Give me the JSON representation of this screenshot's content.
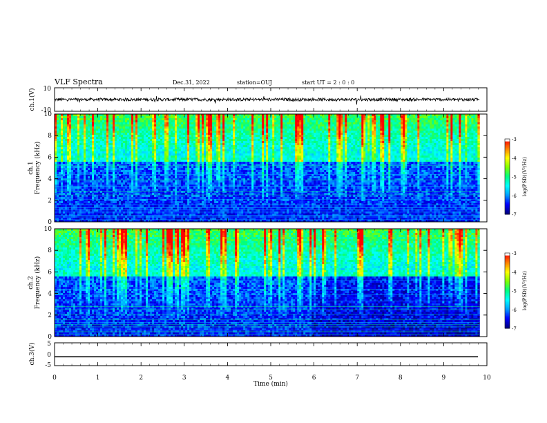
{
  "header": {
    "title": "VLF Spectra",
    "date": "Dec.31, 2022",
    "station": "station=OUJ",
    "start": "start UT =  2 : 0  : 0"
  },
  "colors": {
    "axis": "#000000",
    "colormap": [
      "#000080",
      "#0000ff",
      "#00a0ff",
      "#00ffff",
      "#00ff80",
      "#80ff00",
      "#ffff00",
      "#ff8000",
      "#ff0000",
      "#ffffff"
    ]
  },
  "chart_data": [
    {
      "type": "line",
      "ylabel": "ch.1(V)",
      "ylim": [
        -10,
        10
      ],
      "yticks": [
        "10",
        "-10"
      ],
      "xlim": [
        0,
        10
      ],
      "series_level": 0,
      "note_values": "noisy waveform around 0 V"
    },
    {
      "type": "heatmap",
      "ylabel": "ch.1\nFrequency (kHz)",
      "ylabel_lines": [
        "ch.1",
        "Frequency (kHz)"
      ],
      "ylim": [
        0,
        10
      ],
      "yticks": [
        "0",
        "2",
        "4",
        "6",
        "8",
        "10"
      ],
      "xlim": [
        0,
        10
      ],
      "data_end_min": 9.83,
      "colorbar": {
        "label": "log(PSD)(V²/Hz)",
        "range": [
          -7,
          -3
        ],
        "ticks": [
          "-3",
          "-4",
          "-5",
          "-6",
          "-7"
        ]
      }
    },
    {
      "type": "heatmap",
      "ylabel": "ch.2\nFrequency (kHz)",
      "ylabel_lines": [
        "ch.2",
        "Frequency (kHz)"
      ],
      "ylim": [
        0,
        10
      ],
      "yticks": [
        "0",
        "2",
        "4",
        "6",
        "8",
        "10"
      ],
      "xlim": [
        0,
        10
      ],
      "data_end_min": 9.83,
      "colorbar": {
        "label": "log(PSD)(V²/Hz)",
        "range": [
          -7,
          -3
        ],
        "ticks": [
          "-3",
          "-4",
          "-5",
          "-6",
          "-7"
        ]
      }
    },
    {
      "type": "line",
      "ylabel": "ch.3(V)",
      "ylim": [
        -5,
        5
      ],
      "yticks": [
        "5",
        "0",
        "-5"
      ],
      "xlim": [
        0,
        10
      ],
      "series_level": -1.1,
      "xticks": [
        "0",
        "1",
        "2",
        "3",
        "4",
        "5",
        "6",
        "7",
        "8",
        "9",
        "10"
      ],
      "xlabel": "Time (min)"
    }
  ]
}
